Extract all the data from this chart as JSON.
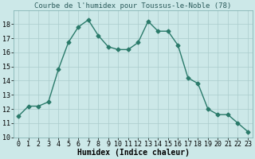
{
  "x": [
    0,
    1,
    2,
    3,
    4,
    5,
    6,
    7,
    8,
    9,
    10,
    11,
    12,
    13,
    14,
    15,
    16,
    17,
    18,
    19,
    20,
    21,
    22,
    23
  ],
  "y": [
    11.5,
    12.2,
    12.2,
    12.5,
    14.8,
    16.7,
    17.8,
    18.3,
    17.2,
    16.4,
    16.2,
    16.2,
    16.7,
    18.2,
    17.5,
    17.5,
    16.5,
    14.2,
    13.8,
    12.0,
    11.6,
    11.6,
    11.0,
    10.4
  ],
  "line_color": "#2a7a6a",
  "marker": "D",
  "markersize": 2.5,
  "linewidth": 1.0,
  "title": "Courbe de l'humidex pour Toussus-le-Noble (78)",
  "xlabel": "Humidex (Indice chaleur)",
  "xlim": [
    -0.5,
    23.5
  ],
  "ylim": [
    10,
    19
  ],
  "yticks": [
    10,
    11,
    12,
    13,
    14,
    15,
    16,
    17,
    18
  ],
  "xticks": [
    0,
    1,
    2,
    3,
    4,
    5,
    6,
    7,
    8,
    9,
    10,
    11,
    12,
    13,
    14,
    15,
    16,
    17,
    18,
    19,
    20,
    21,
    22,
    23
  ],
  "bg_color": "#cce8e8",
  "grid_color": "#aacccc",
  "title_fontsize": 6.5,
  "label_fontsize": 7.0,
  "tick_fontsize": 6.0
}
